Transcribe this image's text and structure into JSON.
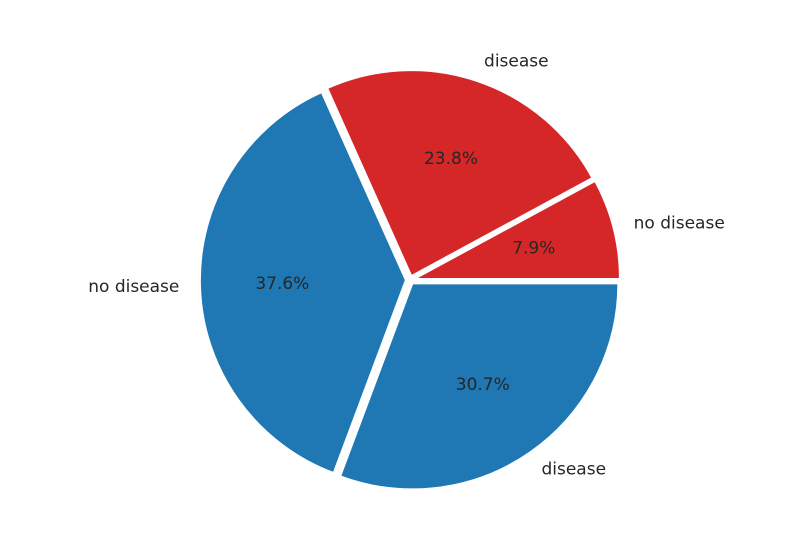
{
  "chart_data": {
    "type": "pie",
    "start_angle_deg": 0,
    "direction": "counterclockwise",
    "explode": 0.02,
    "slices": [
      {
        "label": "no disease",
        "pct_label": "7.9%",
        "value": 7.9,
        "color": "#d62728"
      },
      {
        "label": "disease",
        "pct_label": "23.8%",
        "value": 23.8,
        "color": "#d62728"
      },
      {
        "label": "no disease",
        "pct_label": "37.6%",
        "value": 37.6,
        "color": "#1f77b4"
      },
      {
        "label": "disease",
        "pct_label": "30.7%",
        "value": 30.7,
        "color": "#1f77b4"
      }
    ]
  }
}
